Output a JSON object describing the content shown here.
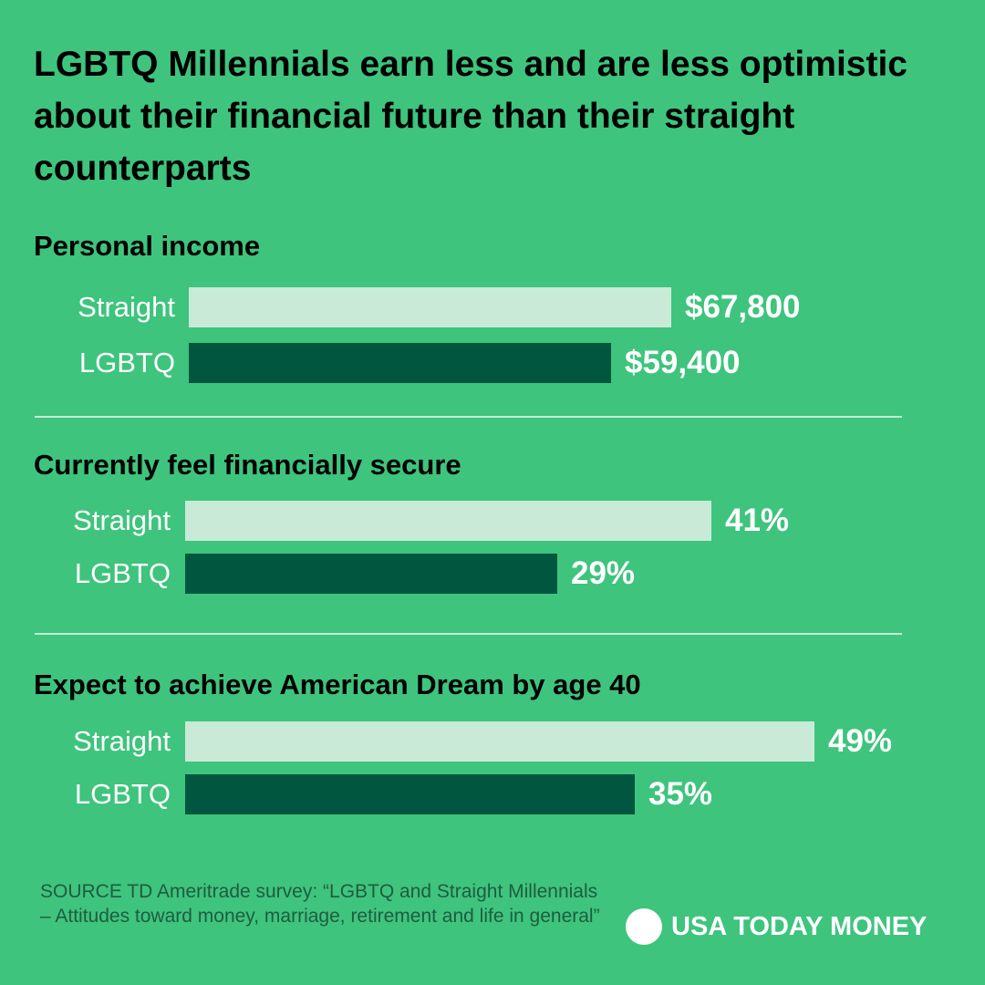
{
  "title": "LGBTQ Millennials earn less and are less optimistic about their financial future than their straight counterparts",
  "colors": {
    "background": "#3ec47d",
    "straight": "#c8ead6",
    "lgbtq": "#00563f",
    "divider": "#c8ead6"
  },
  "chart_data": [
    {
      "type": "bar",
      "orientation": "horizontal",
      "title": "Personal income",
      "categories": [
        "Straight",
        "LGBTQ"
      ],
      "values": [
        67800,
        59400
      ],
      "value_labels": [
        "$67,800",
        "$59,400"
      ],
      "xlim": [
        0,
        84000
      ],
      "grid": false
    },
    {
      "type": "bar",
      "orientation": "horizontal",
      "title": "Currently feel financially secure",
      "categories": [
        "Straight",
        "LGBTQ"
      ],
      "values": [
        41,
        29
      ],
      "value_labels": [
        "41%",
        "29%"
      ],
      "xlim": [
        0,
        50
      ],
      "grid": false
    },
    {
      "type": "bar",
      "orientation": "horizontal",
      "title": "Expect to achieve American Dream by age 40",
      "categories": [
        "Straight",
        "LGBTQ"
      ],
      "values": [
        49,
        35
      ],
      "value_labels": [
        "49%",
        "35%"
      ],
      "xlim": [
        0,
        50
      ],
      "grid": false
    }
  ],
  "source": "SOURCE TD Ameritrade survey: “LGBTQ and Straight Millennials – Attitudes toward money,  marriage, retirement and life in general”",
  "logo_text": "USA TODAY MONEY"
}
